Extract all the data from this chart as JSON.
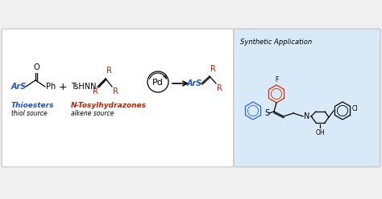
{
  "bg_color": "#f0f0f0",
  "reaction_box_color": "#ffffff",
  "synth_box_color": "#d8eaf8",
  "border_color": "#bbbbbb",
  "chem_fontsize": 7,
  "label_fontsize": 6.5,
  "sub_fontsize": 5.5,
  "thioesters_color": "#2255bb",
  "ntosyl_color": "#bb2200",
  "ars_color": "#2255bb",
  "r_color": "#bb2200",
  "pd_label": "Pd",
  "thioester_label": "Thioesters",
  "thioester_sublabel": "thiol source",
  "ntosyl_label": "N-Tosylhydrazones",
  "ntosyl_sublabel": "alkene source",
  "synth_label": "Synthetic Application",
  "fig_w": 4.74,
  "fig_h": 2.48,
  "dpi": 100
}
